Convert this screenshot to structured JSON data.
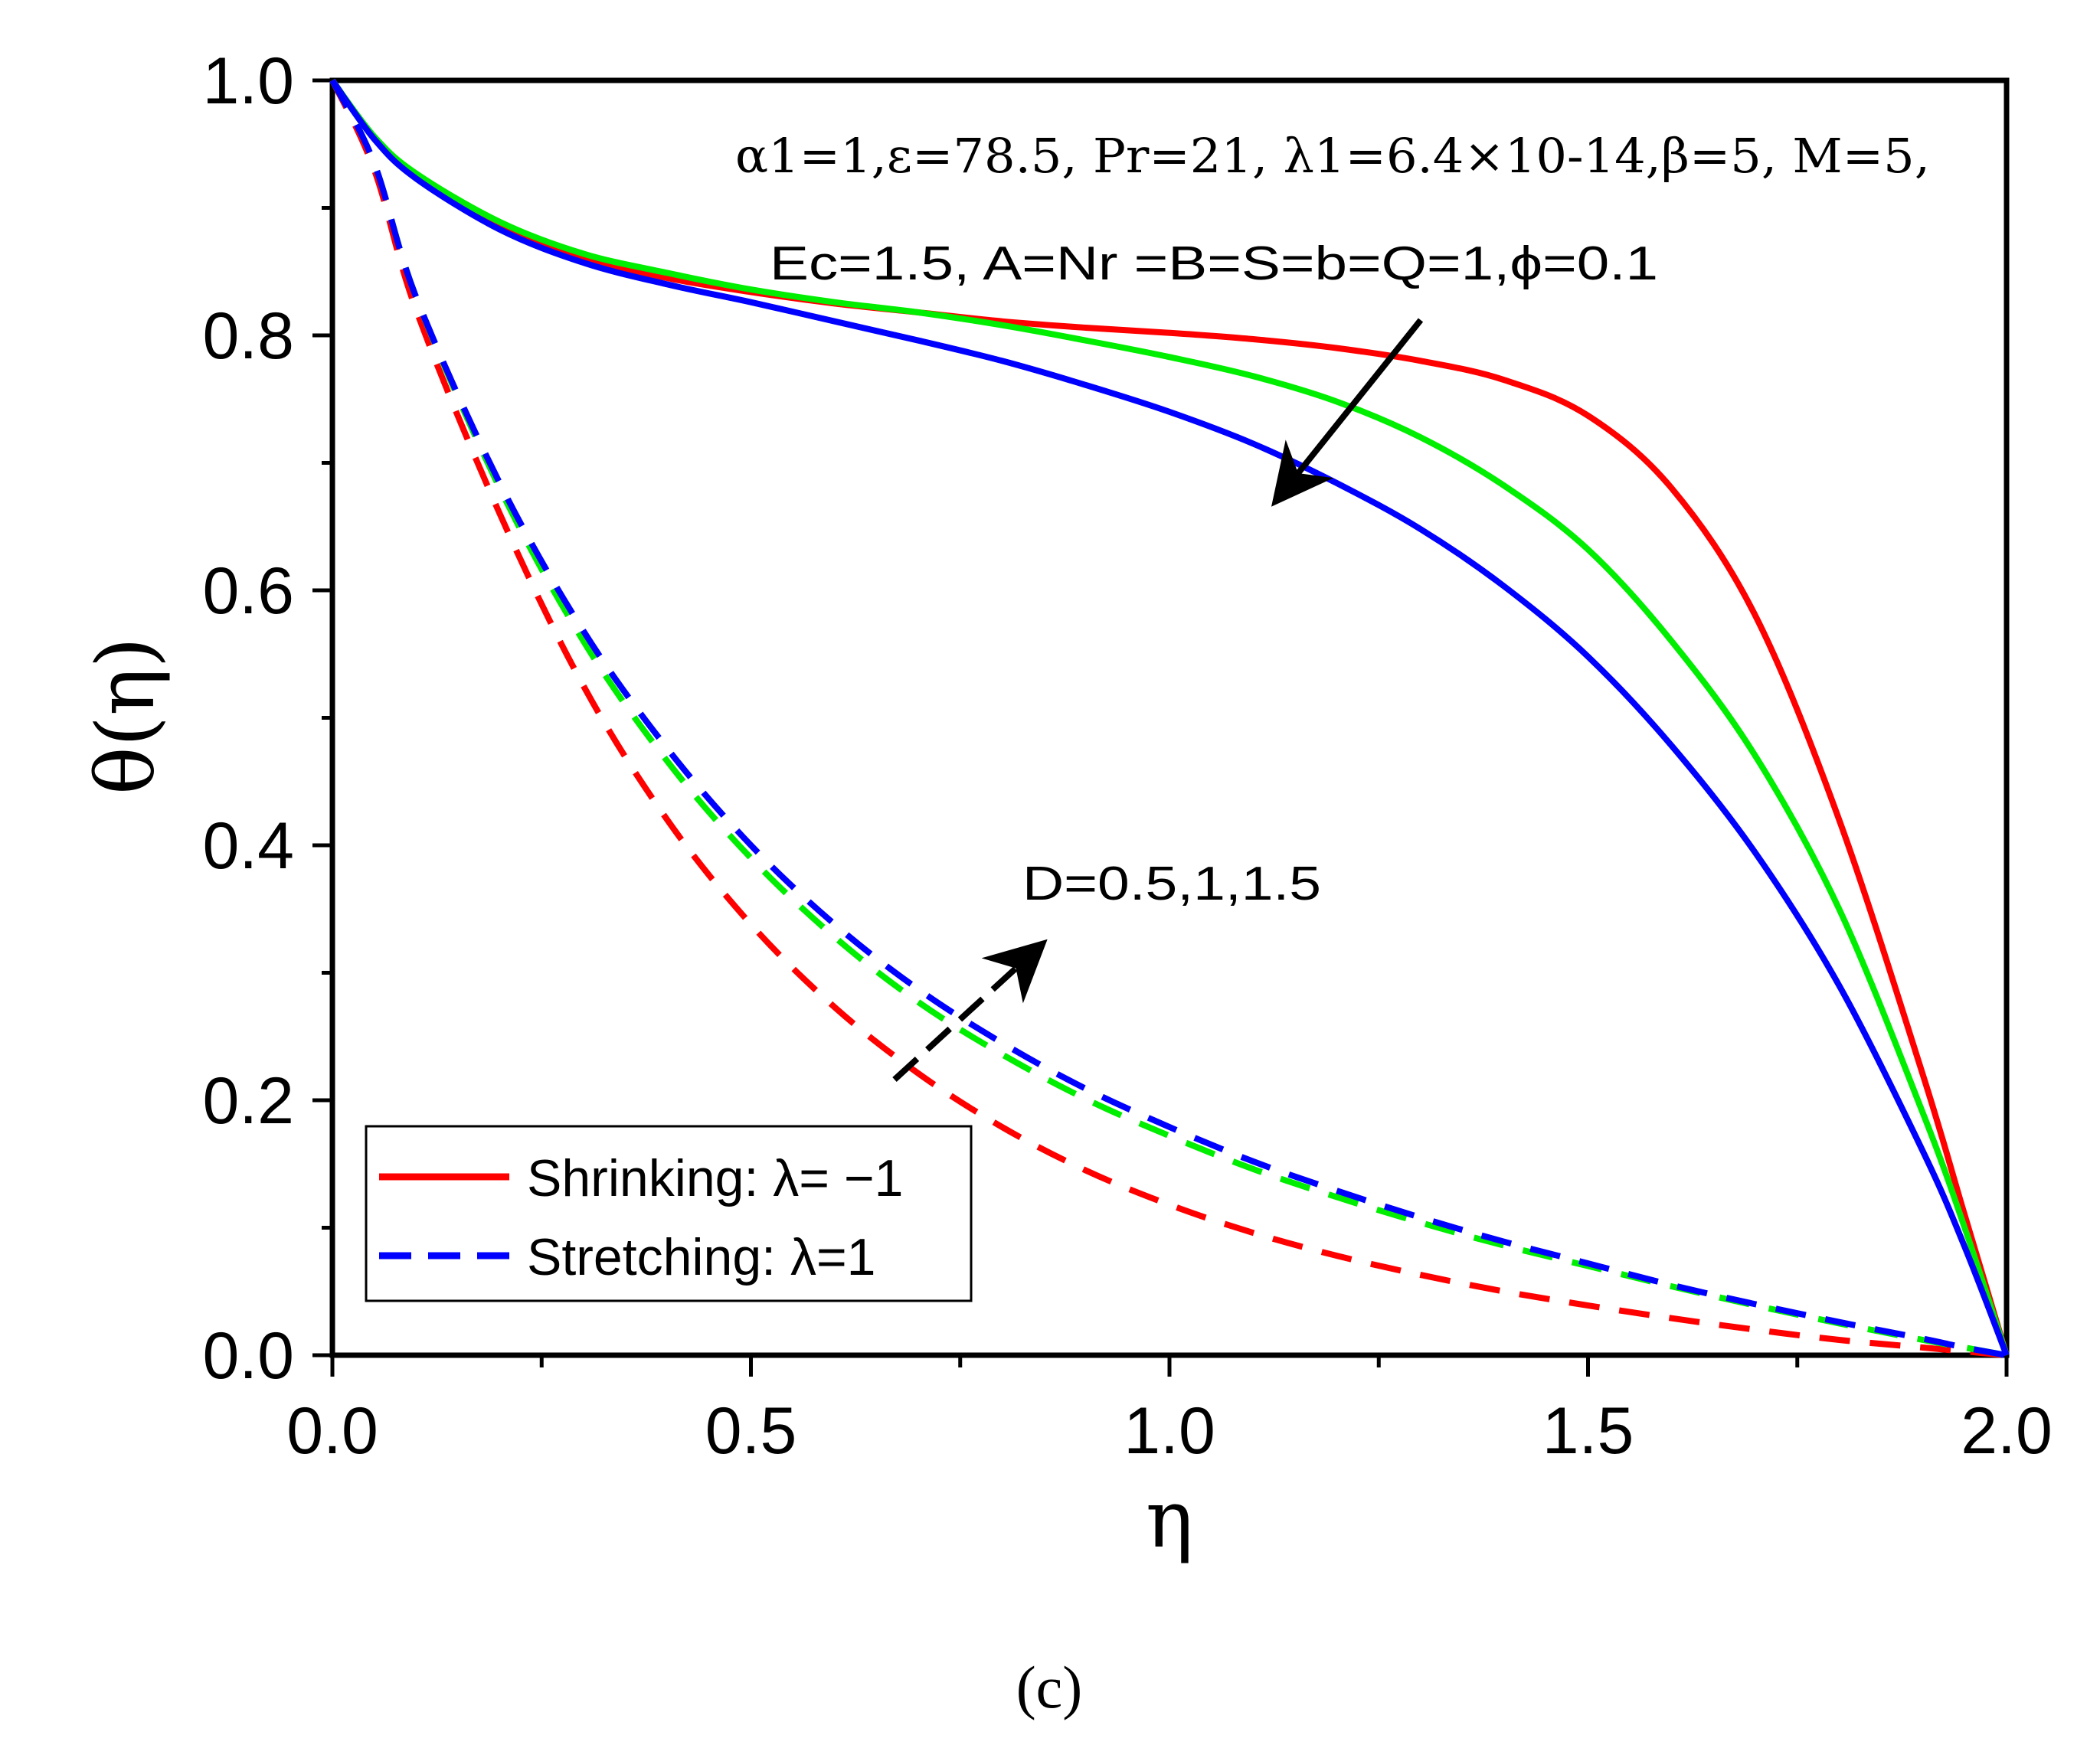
{
  "chart_data": {
    "type": "line",
    "panel_label": "(c)",
    "xlabel": "η",
    "ylabel": "θ(η)",
    "xlim": [
      0,
      2
    ],
    "ylim": [
      0,
      1
    ],
    "x_ticks": [
      0,
      0.5,
      1,
      1.5,
      2
    ],
    "x_tick_labels": [
      "0.0",
      "0.5",
      "1.0",
      "1.5",
      "2.0"
    ],
    "y_ticks": [
      0,
      0.2,
      0.4,
      0.6,
      0.8,
      1
    ],
    "y_tick_labels": [
      "0.0",
      "0.2",
      "0.4",
      "0.6",
      "0.8",
      "1.0"
    ],
    "annotation_line1": "α1=1,ε=78.5, Pr=21, λ1=6.4×10-14,β=5, M=5,",
    "annotation_line2": "Ec=1.5, A=Nr =B=S=b=Q=1,ϕ=0.1",
    "param_label": "D=0.5,1,1.5",
    "legend": [
      {
        "label": "Shrinking: λ= −1",
        "style": "solid",
        "color": "#ff0000"
      },
      {
        "label": "Stretching: λ=1",
        "style": "dashed",
        "color": "#0000ff"
      }
    ],
    "x": [
      0,
      0.05,
      0.1,
      0.2,
      0.3,
      0.4,
      0.5,
      0.6,
      0.7,
      0.8,
      0.9,
      1.0,
      1.1,
      1.2,
      1.3,
      1.4,
      1.5,
      1.6,
      1.7,
      1.8,
      1.9,
      1.95,
      2.0
    ],
    "series": [
      {
        "name": "Shrinking D=0.5",
        "style": "solid",
        "color": "#ff0000",
        "values": [
          1.0,
          0.955,
          0.925,
          0.886,
          0.861,
          0.845,
          0.834,
          0.825,
          0.818,
          0.811,
          0.806,
          0.802,
          0.797,
          0.79,
          0.78,
          0.765,
          0.737,
          0.68,
          0.58,
          0.42,
          0.22,
          0.11,
          0.0
        ]
      },
      {
        "name": "Shrinking D=1",
        "style": "solid",
        "color": "#00ee00",
        "values": [
          1.0,
          0.956,
          0.927,
          0.889,
          0.864,
          0.849,
          0.836,
          0.826,
          0.818,
          0.808,
          0.796,
          0.783,
          0.768,
          0.748,
          0.72,
          0.682,
          0.632,
          0.56,
          0.47,
          0.35,
          0.19,
          0.1,
          0.0
        ]
      },
      {
        "name": "Shrinking D=1.5",
        "style": "solid",
        "color": "#0000ff",
        "values": [
          1.0,
          0.954,
          0.923,
          0.883,
          0.857,
          0.84,
          0.826,
          0.811,
          0.796,
          0.78,
          0.761,
          0.74,
          0.715,
          0.684,
          0.648,
          0.603,
          0.548,
          0.478,
          0.394,
          0.29,
          0.16,
          0.085,
          0.0
        ]
      },
      {
        "name": "Stretching D=0.5",
        "style": "dashed",
        "color": "#ff0000",
        "values": [
          1.0,
          0.93,
          0.82,
          0.66,
          0.525,
          0.42,
          0.338,
          0.273,
          0.221,
          0.179,
          0.145,
          0.118,
          0.096,
          0.078,
          0.063,
          0.05,
          0.039,
          0.029,
          0.02,
          0.012,
          0.006,
          0.003,
          0.0
        ]
      },
      {
        "name": "Stretching D=1",
        "style": "dashed",
        "color": "#00ee00",
        "values": [
          1.0,
          0.935,
          0.83,
          0.68,
          0.56,
          0.466,
          0.39,
          0.328,
          0.277,
          0.236,
          0.201,
          0.172,
          0.146,
          0.124,
          0.104,
          0.086,
          0.07,
          0.054,
          0.039,
          0.025,
          0.012,
          0.006,
          0.0
        ]
      },
      {
        "name": "Stretching D=1.5",
        "style": "dashed",
        "color": "#0000ff",
        "values": [
          1.0,
          0.935,
          0.83,
          0.684,
          0.568,
          0.476,
          0.4,
          0.338,
          0.287,
          0.245,
          0.209,
          0.179,
          0.152,
          0.129,
          0.108,
          0.089,
          0.072,
          0.055,
          0.04,
          0.026,
          0.013,
          0.006,
          0.0
        ]
      }
    ]
  }
}
